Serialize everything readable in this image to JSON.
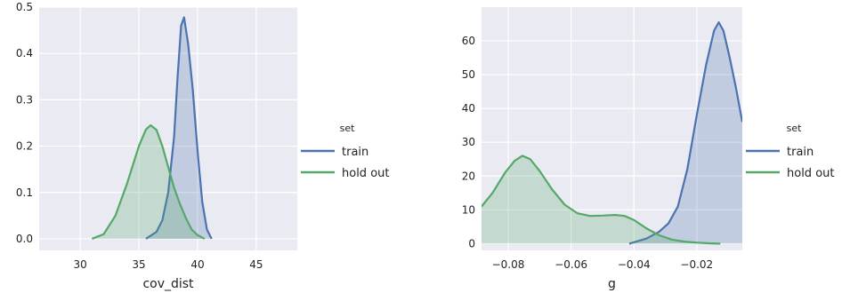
{
  "chart_data": [
    {
      "type": "area",
      "kind": "kde density",
      "xlabel": "cov_dist",
      "ylabel": "",
      "xlim": [
        26.5,
        48.5
      ],
      "ylim": [
        -0.025,
        0.5
      ],
      "xticks": [
        "30",
        "35",
        "40",
        "45"
      ],
      "yticks": [
        "0.0",
        "0.1",
        "0.2",
        "0.3",
        "0.4",
        "0.5"
      ],
      "grid": true,
      "legend": {
        "title": "set",
        "placement": "outside-right"
      },
      "series": [
        {
          "name": "train",
          "color": "#4c72b0",
          "x": [
            35.6,
            36.5,
            37.0,
            37.5,
            38.0,
            38.3,
            38.6,
            38.85,
            39.2,
            39.6,
            40.0,
            40.4,
            40.8,
            41.2
          ],
          "y": [
            0.0,
            0.015,
            0.04,
            0.1,
            0.22,
            0.35,
            0.46,
            0.478,
            0.42,
            0.32,
            0.19,
            0.08,
            0.02,
            0.0
          ]
        },
        {
          "name": "hold out",
          "color": "#55a868",
          "x": [
            31.0,
            32.0,
            33.0,
            34.0,
            35.0,
            35.6,
            36.0,
            36.5,
            37.0,
            37.5,
            38.0,
            38.5,
            39.0,
            39.5,
            40.0,
            40.6
          ],
          "y": [
            0.0,
            0.01,
            0.05,
            0.12,
            0.2,
            0.236,
            0.245,
            0.235,
            0.2,
            0.155,
            0.11,
            0.075,
            0.045,
            0.02,
            0.008,
            0.0
          ]
        }
      ]
    },
    {
      "type": "area",
      "kind": "kde density",
      "xlabel": "g",
      "ylabel": "",
      "xlim": [
        -0.0885,
        -0.0055
      ],
      "ylim": [
        -2,
        70
      ],
      "xticks": [
        "−0.08",
        "−0.06",
        "−0.04",
        "−0.02"
      ],
      "xtick_values": [
        -0.08,
        -0.06,
        -0.04,
        -0.02
      ],
      "yticks": [
        "0",
        "10",
        "20",
        "30",
        "40",
        "50",
        "60"
      ],
      "grid": true,
      "legend": {
        "title": "set",
        "placement": "outside-right"
      },
      "series": [
        {
          "name": "train",
          "color": "#4c72b0",
          "x": [
            -0.0415,
            -0.036,
            -0.032,
            -0.029,
            -0.026,
            -0.023,
            -0.02,
            -0.017,
            -0.0145,
            -0.013,
            -0.0115,
            -0.0095,
            -0.0075,
            -0.0055
          ],
          "y": [
            0.0,
            1.5,
            3.5,
            6.0,
            11.0,
            22.0,
            38.0,
            53.0,
            63.0,
            65.5,
            63.0,
            55.0,
            46.0,
            36.0
          ]
        },
        {
          "name": "hold out",
          "color": "#55a868",
          "x": [
            -0.0885,
            -0.085,
            -0.081,
            -0.078,
            -0.0755,
            -0.073,
            -0.07,
            -0.066,
            -0.062,
            -0.058,
            -0.054,
            -0.05,
            -0.046,
            -0.043,
            -0.04,
            -0.036,
            -0.032,
            -0.028,
            -0.024,
            -0.02,
            -0.016,
            -0.0125
          ],
          "y": [
            11.0,
            15.0,
            21.0,
            24.5,
            26.0,
            25.0,
            21.5,
            16.0,
            11.5,
            9.0,
            8.2,
            8.3,
            8.5,
            8.2,
            7.0,
            4.5,
            2.5,
            1.2,
            0.6,
            0.3,
            0.1,
            0.0
          ]
        }
      ]
    }
  ]
}
